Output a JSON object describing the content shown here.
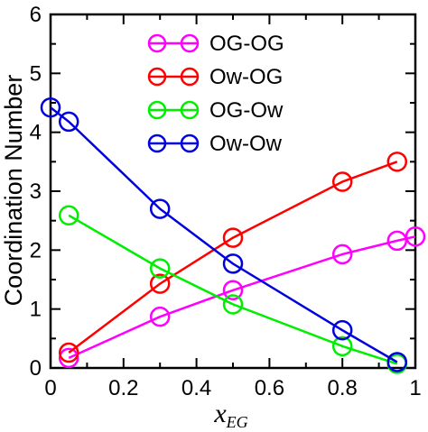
{
  "chart_data": {
    "type": "line",
    "xlabel_main": "x",
    "xlabel_sub": "EG",
    "ylabel": "Coordination Number",
    "xlim": [
      0,
      1
    ],
    "ylim": [
      0,
      6
    ],
    "x_ticks": [
      "0",
      "0.2",
      "0.4",
      "0.6",
      "0.8",
      "1"
    ],
    "x_tick_values": [
      0,
      0.2,
      0.4,
      0.6,
      0.8,
      1.0
    ],
    "y_ticks": [
      "0",
      "1",
      "2",
      "3",
      "4",
      "5",
      "6"
    ],
    "y_tick_values": [
      0,
      1,
      2,
      3,
      4,
      5,
      6
    ],
    "grid": false,
    "legend_position": "top-right",
    "series": [
      {
        "name": "OG-OG",
        "color": "#ff00ff",
        "x": [
          0.05,
          0.3,
          0.5,
          0.8,
          0.95,
          1.0
        ],
        "y": [
          0.17,
          0.87,
          1.32,
          1.93,
          2.16,
          2.23
        ]
      },
      {
        "name": "Ow-OG",
        "color": "#ff0000",
        "x": [
          0.05,
          0.3,
          0.5,
          0.8,
          0.95
        ],
        "y": [
          0.26,
          1.43,
          2.21,
          3.16,
          3.5
        ]
      },
      {
        "name": "OG-Ow",
        "color": "#00ee00",
        "x": [
          0.05,
          0.3,
          0.5,
          0.8,
          0.95
        ],
        "y": [
          2.59,
          1.69,
          1.08,
          0.37,
          0.07
        ]
      },
      {
        "name": "Ow-Ow",
        "color": "#0000dd",
        "x": [
          0.0,
          0.05,
          0.3,
          0.5,
          0.8,
          0.95
        ],
        "y": [
          4.42,
          4.18,
          2.7,
          1.77,
          0.64,
          0.1
        ]
      }
    ]
  }
}
